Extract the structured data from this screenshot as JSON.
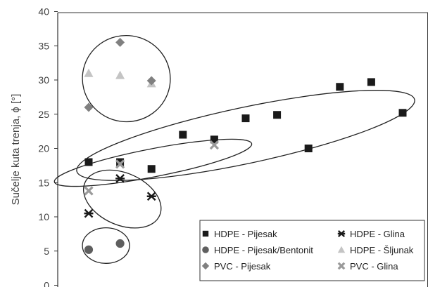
{
  "chart_data": {
    "type": "scatter",
    "title": "",
    "xlabel": "",
    "ylabel": "Sučelje kuta trenja, ϕ [°]",
    "ylim": [
      0,
      40
    ],
    "yticks": [
      0,
      5,
      10,
      15,
      20,
      25,
      30,
      35,
      40
    ],
    "xlim": [
      0,
      11
    ],
    "grid": false,
    "legend_position": "bottom-right",
    "series": [
      {
        "name": "HDPE - Pijesak",
        "marker": "square",
        "color": "#1a1a1a",
        "points": [
          {
            "x": 1,
            "y": 18
          },
          {
            "x": 2,
            "y": 18
          },
          {
            "x": 3,
            "y": 17
          },
          {
            "x": 4,
            "y": 22
          },
          {
            "x": 5,
            "y": 21.3
          },
          {
            "x": 6,
            "y": 24.4
          },
          {
            "x": 7,
            "y": 24.9
          },
          {
            "x": 8,
            "y": 20
          },
          {
            "x": 9,
            "y": 29
          },
          {
            "x": 10,
            "y": 29.7
          },
          {
            "x": 11,
            "y": 25.2
          }
        ]
      },
      {
        "name": "HDPE - Glina",
        "marker": "star",
        "color": "#1a1a1a",
        "points": [
          {
            "x": 1,
            "y": 10.5
          },
          {
            "x": 2,
            "y": 15.6
          },
          {
            "x": 3,
            "y": 13
          }
        ]
      },
      {
        "name": "HDPE - Pijesak/Bentonit",
        "marker": "circle",
        "color": "#5f5f5f",
        "points": [
          {
            "x": 1,
            "y": 5.2
          },
          {
            "x": 2,
            "y": 6.1
          }
        ]
      },
      {
        "name": "HDPE - Šljunak",
        "marker": "triangle",
        "color": "#c4c4c4",
        "points": [
          {
            "x": 1,
            "y": 31
          },
          {
            "x": 2,
            "y": 30.7
          },
          {
            "x": 3,
            "y": 29.5
          }
        ]
      },
      {
        "name": "PVC - Pijesak",
        "marker": "diamond",
        "color": "#808080",
        "points": [
          {
            "x": 1,
            "y": 26
          },
          {
            "x": 2,
            "y": 35.5
          },
          {
            "x": 3,
            "y": 29.9
          }
        ]
      },
      {
        "name": "PVC - Glina",
        "marker": "x",
        "color": "#9a9a9a",
        "points": [
          {
            "x": 1,
            "y": 13.8
          },
          {
            "x": 2,
            "y": 17.7
          },
          {
            "x": 5,
            "y": 20.5
          }
        ]
      }
    ],
    "groupings": [
      {
        "name": "group-pvc-pijesak-sljunak",
        "cx": 2.2,
        "cy": 30.2,
        "rx": 1.4,
        "ry": 6.3,
        "rot": 8
      },
      {
        "name": "group-hdpe-pijesak-large",
        "cx": 6,
        "cy": 21.9,
        "rx": 5.5,
        "ry": 4.1,
        "rot": -12
      },
      {
        "name": "group-mixed-middle",
        "cx": 3.05,
        "cy": 17.9,
        "rx": 3.2,
        "ry": 2.05,
        "rot": -11
      },
      {
        "name": "group-hdpe-glina",
        "cx": 2.07,
        "cy": 12.6,
        "rx": 1.3,
        "ry": 3.8,
        "rot": 24
      },
      {
        "name": "group-bentonit",
        "cx": 1.55,
        "cy": 5.8,
        "rx": 0.75,
        "ry": 2.6,
        "rot": 0
      }
    ]
  }
}
